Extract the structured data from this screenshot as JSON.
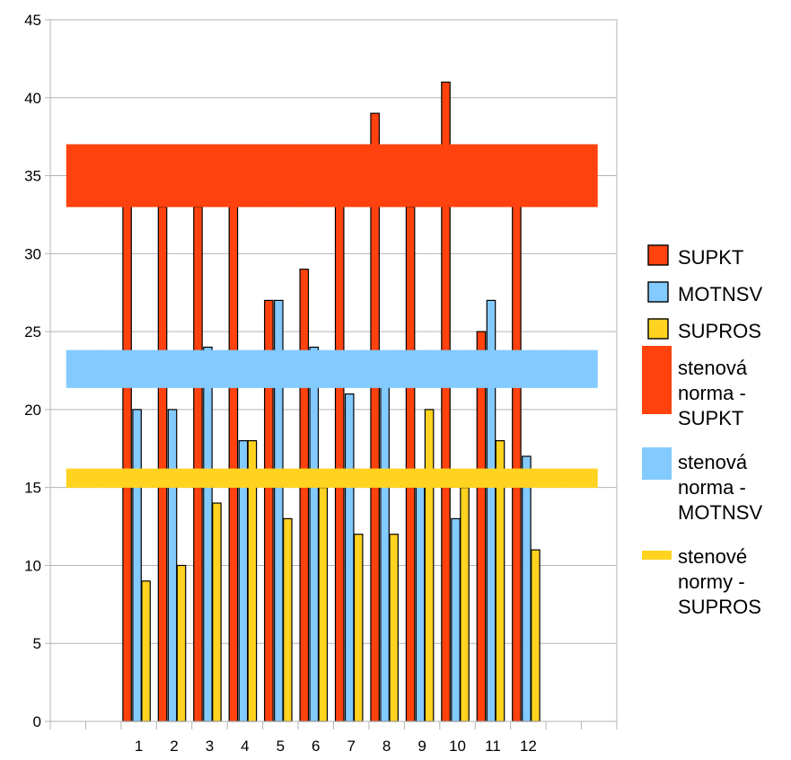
{
  "chart_data": {
    "type": "bar",
    "title": "",
    "xlabel": "",
    "ylabel": "",
    "ylim": [
      0,
      45
    ],
    "yticks": [
      0,
      5,
      10,
      15,
      20,
      25,
      30,
      35,
      40,
      45
    ],
    "grid": true,
    "legend_position": "right",
    "categories": [
      "",
      "",
      "1",
      "2",
      "3",
      "4",
      "5",
      "6",
      "7",
      "8",
      "9",
      "10",
      "11",
      "12",
      "",
      ""
    ],
    "series": [
      {
        "name": "SUPKT",
        "color": "#ff420e",
        "values": [
          null,
          null,
          34,
          33,
          33,
          35,
          27,
          29,
          34,
          39,
          33,
          41,
          25,
          35,
          null,
          null
        ]
      },
      {
        "name": "MOTNSV",
        "color": "#83caff",
        "values": [
          null,
          null,
          20,
          20,
          24,
          18,
          27,
          24,
          21,
          22,
          16,
          13,
          27,
          17,
          null,
          null
        ]
      },
      {
        "name": "SUPROS",
        "color": "#ffd320",
        "values": [
          null,
          null,
          9,
          10,
          14,
          18,
          13,
          15,
          12,
          12,
          20,
          15,
          18,
          11,
          null,
          null
        ]
      }
    ],
    "norm_bands": [
      {
        "name": "stenová norma - SUPKT",
        "color": "#ff420e",
        "low": 33,
        "high": 37
      },
      {
        "name": "stenová norma - MOTNSV",
        "color": "#83caff",
        "low": 21.4,
        "high": 23.8
      },
      {
        "name": "stenové normy - SUPROS",
        "color": "#ffd320",
        "low": 15,
        "high": 16.2
      }
    ],
    "legend": [
      {
        "lines": [
          "SUPKT"
        ],
        "color": "#ff420e",
        "kind": "bar"
      },
      {
        "lines": [
          "MOTNSV"
        ],
        "color": "#83caff",
        "kind": "bar"
      },
      {
        "lines": [
          "SUPROS"
        ],
        "color": "#ffd320",
        "kind": "bar"
      },
      {
        "lines": [
          "stenová",
          "norma -",
          "SUPKT"
        ],
        "color": "#ff420e",
        "kind": "band"
      },
      {
        "lines": [
          "stenová",
          "norma -",
          "MOTNSV"
        ],
        "color": "#83caff",
        "kind": "band"
      },
      {
        "lines": [
          "stenové",
          "normy -",
          "SUPROS"
        ],
        "color": "#ffd320",
        "kind": "band"
      }
    ]
  }
}
